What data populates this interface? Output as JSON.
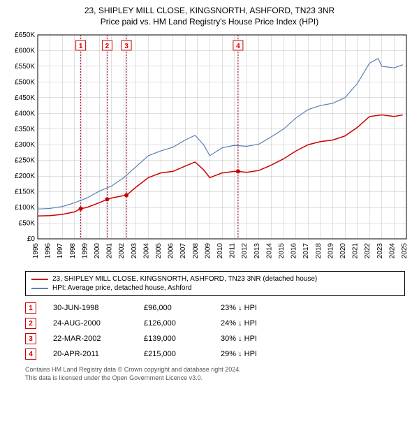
{
  "title": {
    "line1": "23, SHIPLEY MILL CLOSE, KINGSNORTH, ASHFORD, TN23 3NR",
    "line2": "Price paid vs. HM Land Registry's House Price Index (HPI)"
  },
  "chart": {
    "type": "line",
    "plot_background": "#ffffff",
    "grid_color": "#bfbfbf",
    "axis_font_size": 10,
    "x": {
      "min": 1995,
      "max": 2025,
      "ticks": [
        1995,
        1996,
        1997,
        1998,
        1999,
        2000,
        2001,
        2002,
        2003,
        2004,
        2005,
        2006,
        2007,
        2008,
        2009,
        2010,
        2011,
        2012,
        2013,
        2014,
        2015,
        2016,
        2017,
        2018,
        2019,
        2020,
        2021,
        2022,
        2023,
        2024,
        2025
      ],
      "labels": [
        "1995",
        "1996",
        "1997",
        "1998",
        "1999",
        "2000",
        "2001",
        "2002",
        "2003",
        "2004",
        "2005",
        "2006",
        "2007",
        "2008",
        "2009",
        "2010",
        "2011",
        "2012",
        "2013",
        "2014",
        "2015",
        "2016",
        "2017",
        "2018",
        "2019",
        "2020",
        "2021",
        "2022",
        "2023",
        "2024",
        "2025"
      ]
    },
    "y": {
      "min": 0,
      "max": 650000,
      "ticks": [
        0,
        50000,
        100000,
        150000,
        200000,
        250000,
        300000,
        350000,
        400000,
        450000,
        500000,
        550000,
        600000,
        650000
      ],
      "labels": [
        "£0",
        "£50K",
        "£100K",
        "£150K",
        "£200K",
        "£250K",
        "£300K",
        "£350K",
        "£400K",
        "£450K",
        "£500K",
        "£550K",
        "£600K",
        "£650K"
      ]
    },
    "shaded_bands": [
      {
        "from": 1998.4,
        "to": 1998.6,
        "color": "#e8eef7"
      },
      {
        "from": 2000.55,
        "to": 2000.75,
        "color": "#e8eef7"
      },
      {
        "from": 2002.1,
        "to": 2002.3,
        "color": "#e8eef7"
      },
      {
        "from": 2011.2,
        "to": 2011.4,
        "color": "#e8eef7"
      }
    ],
    "event_lines": {
      "color": "#cc0000",
      "dash": "2,2",
      "width": 1,
      "events": [
        {
          "n": "1",
          "x": 1998.5
        },
        {
          "n": "2",
          "x": 2000.65
        },
        {
          "n": "3",
          "x": 2002.22
        },
        {
          "n": "4",
          "x": 2011.3
        }
      ]
    },
    "series": [
      {
        "id": "property",
        "name": "23, SHIPLEY MILL CLOSE, KINGSNORTH, ASHFORD, TN23 3NR (detached house)",
        "color": "#cc0000",
        "width": 1.5,
        "points": [
          [
            1995,
            73000
          ],
          [
            1996,
            74000
          ],
          [
            1997,
            78000
          ],
          [
            1998,
            86000
          ],
          [
            1998.5,
            96000
          ],
          [
            1999,
            100000
          ],
          [
            2000,
            115000
          ],
          [
            2000.65,
            126000
          ],
          [
            2001,
            130000
          ],
          [
            2002,
            138000
          ],
          [
            2002.22,
            139000
          ],
          [
            2003,
            165000
          ],
          [
            2004,
            195000
          ],
          [
            2005,
            210000
          ],
          [
            2006,
            215000
          ],
          [
            2007,
            232000
          ],
          [
            2007.8,
            245000
          ],
          [
            2008.5,
            220000
          ],
          [
            2009,
            195000
          ],
          [
            2010,
            210000
          ],
          [
            2011,
            215000
          ],
          [
            2011.3,
            215000
          ],
          [
            2012,
            212000
          ],
          [
            2013,
            218000
          ],
          [
            2014,
            235000
          ],
          [
            2015,
            255000
          ],
          [
            2016,
            280000
          ],
          [
            2017,
            300000
          ],
          [
            2018,
            310000
          ],
          [
            2019,
            315000
          ],
          [
            2020,
            328000
          ],
          [
            2021,
            355000
          ],
          [
            2022,
            390000
          ],
          [
            2023,
            395000
          ],
          [
            2024,
            390000
          ],
          [
            2024.7,
            395000
          ]
        ],
        "markers": [
          {
            "x": 1998.5,
            "y": 96000
          },
          {
            "x": 2000.65,
            "y": 126000
          },
          {
            "x": 2002.22,
            "y": 139000
          },
          {
            "x": 2011.3,
            "y": 215000
          }
        ]
      },
      {
        "id": "hpi",
        "name": "HPI: Average price, detached house, Ashford",
        "color": "#5b7fb5",
        "width": 1.2,
        "points": [
          [
            1995,
            95000
          ],
          [
            1996,
            97000
          ],
          [
            1997,
            103000
          ],
          [
            1998,
            115000
          ],
          [
            1999,
            130000
          ],
          [
            2000,
            152000
          ],
          [
            2001,
            168000
          ],
          [
            2002,
            195000
          ],
          [
            2003,
            230000
          ],
          [
            2004,
            265000
          ],
          [
            2005,
            280000
          ],
          [
            2006,
            292000
          ],
          [
            2007,
            315000
          ],
          [
            2007.8,
            330000
          ],
          [
            2008.5,
            300000
          ],
          [
            2009,
            265000
          ],
          [
            2010,
            290000
          ],
          [
            2011,
            298000
          ],
          [
            2012,
            295000
          ],
          [
            2013,
            302000
          ],
          [
            2014,
            325000
          ],
          [
            2015,
            350000
          ],
          [
            2016,
            385000
          ],
          [
            2017,
            412000
          ],
          [
            2018,
            425000
          ],
          [
            2019,
            432000
          ],
          [
            2020,
            450000
          ],
          [
            2021,
            495000
          ],
          [
            2022,
            560000
          ],
          [
            2022.7,
            575000
          ],
          [
            2023,
            550000
          ],
          [
            2024,
            545000
          ],
          [
            2024.7,
            555000
          ]
        ]
      }
    ]
  },
  "legend": [
    {
      "color": "#cc0000",
      "label": "23, SHIPLEY MILL CLOSE, KINGSNORTH, ASHFORD, TN23 3NR (detached house)"
    },
    {
      "color": "#5b7fb5",
      "label": "HPI: Average price, detached house, Ashford"
    }
  ],
  "sales": [
    {
      "n": "1",
      "date": "30-JUN-1998",
      "price": "£96,000",
      "diff": "23% ↓ HPI"
    },
    {
      "n": "2",
      "date": "24-AUG-2000",
      "price": "£126,000",
      "diff": "24% ↓ HPI"
    },
    {
      "n": "3",
      "date": "22-MAR-2002",
      "price": "£139,000",
      "diff": "30% ↓ HPI"
    },
    {
      "n": "4",
      "date": "20-APR-2011",
      "price": "£215,000",
      "diff": "29% ↓ HPI"
    }
  ],
  "footer": {
    "line1": "Contains HM Land Registry data © Crown copyright and database right 2024.",
    "line2": "This data is licensed under the Open Government Licence v3.0."
  }
}
